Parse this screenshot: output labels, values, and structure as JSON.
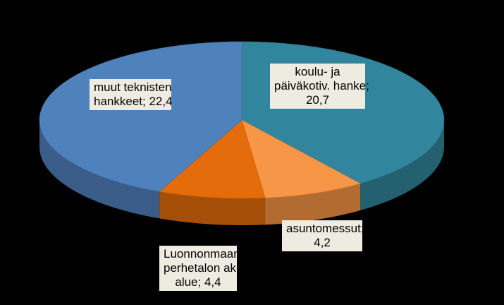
{
  "chart_data": {
    "type": "pie",
    "title": "",
    "slices": [
      {
        "name": "koulu- ja päiväkotiv. hanke",
        "label_lines": [
          "koulu- ja",
          "päiväkotiv. hanke;",
          "20,7"
        ],
        "value": 20.7,
        "color": "#31859c"
      },
      {
        "name": "asuntomessut",
        "label_lines": [
          "asuntomessut;",
          "4,2"
        ],
        "value": 4.2,
        "color": "#f79646"
      },
      {
        "name": "Luonnonmaan perhetalon ak-alue",
        "label_lines": [
          "Luonnonmaan",
          "perhetalon ak-",
          "alue;  4,4"
        ],
        "value": 4.4,
        "color": "#e46c0a"
      },
      {
        "name": "muut teknisten hankkeet",
        "label_lines": [
          "muut teknisten",
          "hankkeet;  22,4"
        ],
        "value": 22.4,
        "color": "#4f81bd"
      }
    ],
    "start_angle": "top, clockwise",
    "style": "3D tilted pie",
    "legend": "none"
  }
}
